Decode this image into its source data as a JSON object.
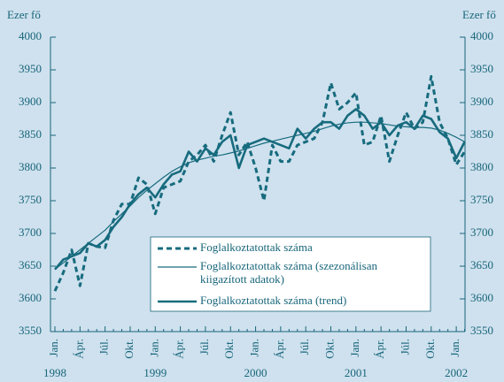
{
  "chart_data": {
    "type": "line",
    "y_label": "Ezer fő",
    "y2_label": "Ezer fő",
    "categories": [
      "Jan.",
      null,
      null,
      "Ápr.",
      null,
      null,
      "Júl.",
      null,
      null,
      "Okt.",
      null,
      null,
      "Jan.",
      null,
      null,
      "Ápr.",
      null,
      null,
      "Júl.",
      null,
      null,
      "Okt.",
      null,
      null,
      "Jan.",
      null,
      null,
      "Ápr.",
      null,
      null,
      "Júl.",
      null,
      null,
      "Okt.",
      null,
      null,
      "Jan.",
      null,
      null,
      "Ápr.",
      null,
      null,
      "Júl.",
      null,
      null,
      "Okt.",
      null,
      null,
      "Jan.",
      null
    ],
    "years": [
      "1998",
      "1999",
      "2000",
      "2001",
      "2002"
    ],
    "ylim": [
      3550,
      4000
    ],
    "yticks": [
      3550,
      3600,
      3650,
      3700,
      3750,
      3800,
      3850,
      3900,
      3950,
      4000
    ],
    "y2lim": [
      3550,
      4000
    ],
    "y2ticks": [
      3550,
      3600,
      3650,
      3700,
      3750,
      3800,
      3850,
      3900,
      3950,
      4000
    ],
    "series": [
      {
        "name": "Foglalkoztatottak száma",
        "color": "#176b7e",
        "style": "dashed",
        "width": 3,
        "values": [
          3612,
          3640,
          3675,
          3620,
          3685,
          3680,
          3678,
          3720,
          3745,
          3745,
          3785,
          3775,
          3730,
          3770,
          3775,
          3780,
          3810,
          3820,
          3835,
          3810,
          3850,
          3885,
          3820,
          3840,
          3800,
          3750,
          3835,
          3810,
          3810,
          3835,
          3840,
          3845,
          3870,
          3930,
          3890,
          3900,
          3915,
          3835,
          3840,
          3880,
          3810,
          3850,
          3885,
          3860,
          3870,
          3940,
          3870,
          3845,
          3805,
          3825
        ]
      },
      {
        "name": "Foglalkoztatottak száma (szezonálisan kiigazított adatok)",
        "color": "#176b7e",
        "style": "solid",
        "width": 1.2,
        "values": [
          3645,
          3655,
          3665,
          3675,
          3685,
          3695,
          3705,
          3718,
          3730,
          3742,
          3755,
          3766,
          3776,
          3786,
          3795,
          3802,
          3808,
          3812,
          3815,
          3818,
          3820,
          3823,
          3826,
          3830,
          3834,
          3838,
          3841,
          3844,
          3847,
          3850,
          3853,
          3856,
          3860,
          3864,
          3867,
          3869,
          3870,
          3870,
          3869,
          3868,
          3866,
          3864,
          3863,
          3862,
          3862,
          3861,
          3858,
          3853,
          3847,
          3840
        ]
      },
      {
        "name": "Foglalkoztatottak száma (trend)",
        "color": "#176b7e",
        "style": "solid",
        "width": 2.6,
        "values": [
          3645,
          3660,
          3665,
          3670,
          3685,
          3680,
          3690,
          3710,
          3725,
          3745,
          3760,
          3770,
          3755,
          3775,
          3790,
          3795,
          3825,
          3810,
          3830,
          3820,
          3840,
          3850,
          3800,
          3835,
          3840,
          3845,
          3840,
          3835,
          3830,
          3860,
          3845,
          3860,
          3870,
          3870,
          3860,
          3880,
          3890,
          3880,
          3860,
          3870,
          3850,
          3865,
          3870,
          3860,
          3880,
          3875,
          3855,
          3845,
          3815,
          3840
        ]
      }
    ]
  }
}
